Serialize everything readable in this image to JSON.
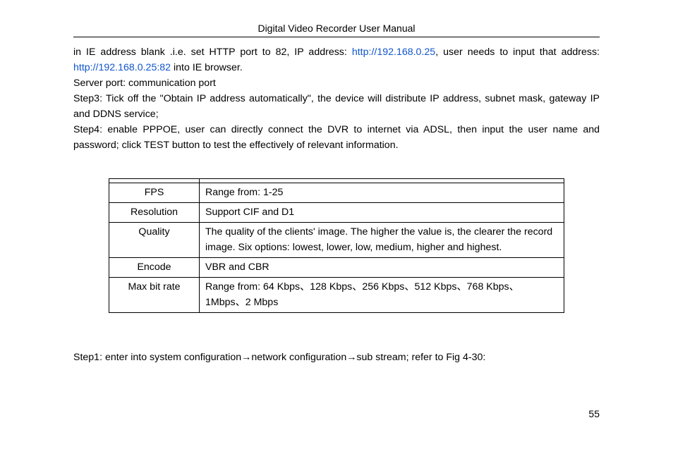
{
  "header": {
    "title": "Digital Video Recorder User Manual"
  },
  "intro": {
    "prefix": "in IE address blank .i.e. set HTTP port to 82, IP address: ",
    "link1": "http://192.168.0.25",
    "mid": ", user needs to input that address: ",
    "link2": "http://192.168.0.25:82",
    "suffix": " into IE browser."
  },
  "lines": {
    "server_port": "Server port: communication port",
    "step3": "Step3: Tick off the \"Obtain IP address automatically\", the device will distribute IP address, subnet mask, gateway IP and DDNS service;",
    "step4": "Step4: enable PPPOE, user can directly connect the DVR to internet via ADSL, then input the user name and password; click TEST button to test the effectively of relevant information."
  },
  "table": {
    "rows": [
      {
        "label": "",
        "value": ""
      },
      {
        "label": "FPS",
        "value": "Range from: 1-25"
      },
      {
        "label": "Resolution",
        "value": "Support CIF and D1"
      },
      {
        "label": "Quality",
        "value": "The quality of the clients' image. The higher the value is, the clearer the record image. Six options: lowest, lower, low, medium, higher and highest."
      },
      {
        "label": "Encode",
        "value": "VBR and CBR"
      },
      {
        "label": "Max bit rate",
        "value": "Range from: 64 Kbps、128 Kbps、256 Kbps、512 Kbps、768 Kbps、1Mbps、2 Mbps"
      }
    ]
  },
  "step_below": {
    "p1": "Step1: enter into system configuration",
    "arrow": "→",
    "p2": "network configuration",
    "p3": "sub stream; refer to Fig 4-30:"
  },
  "page_number": "55"
}
